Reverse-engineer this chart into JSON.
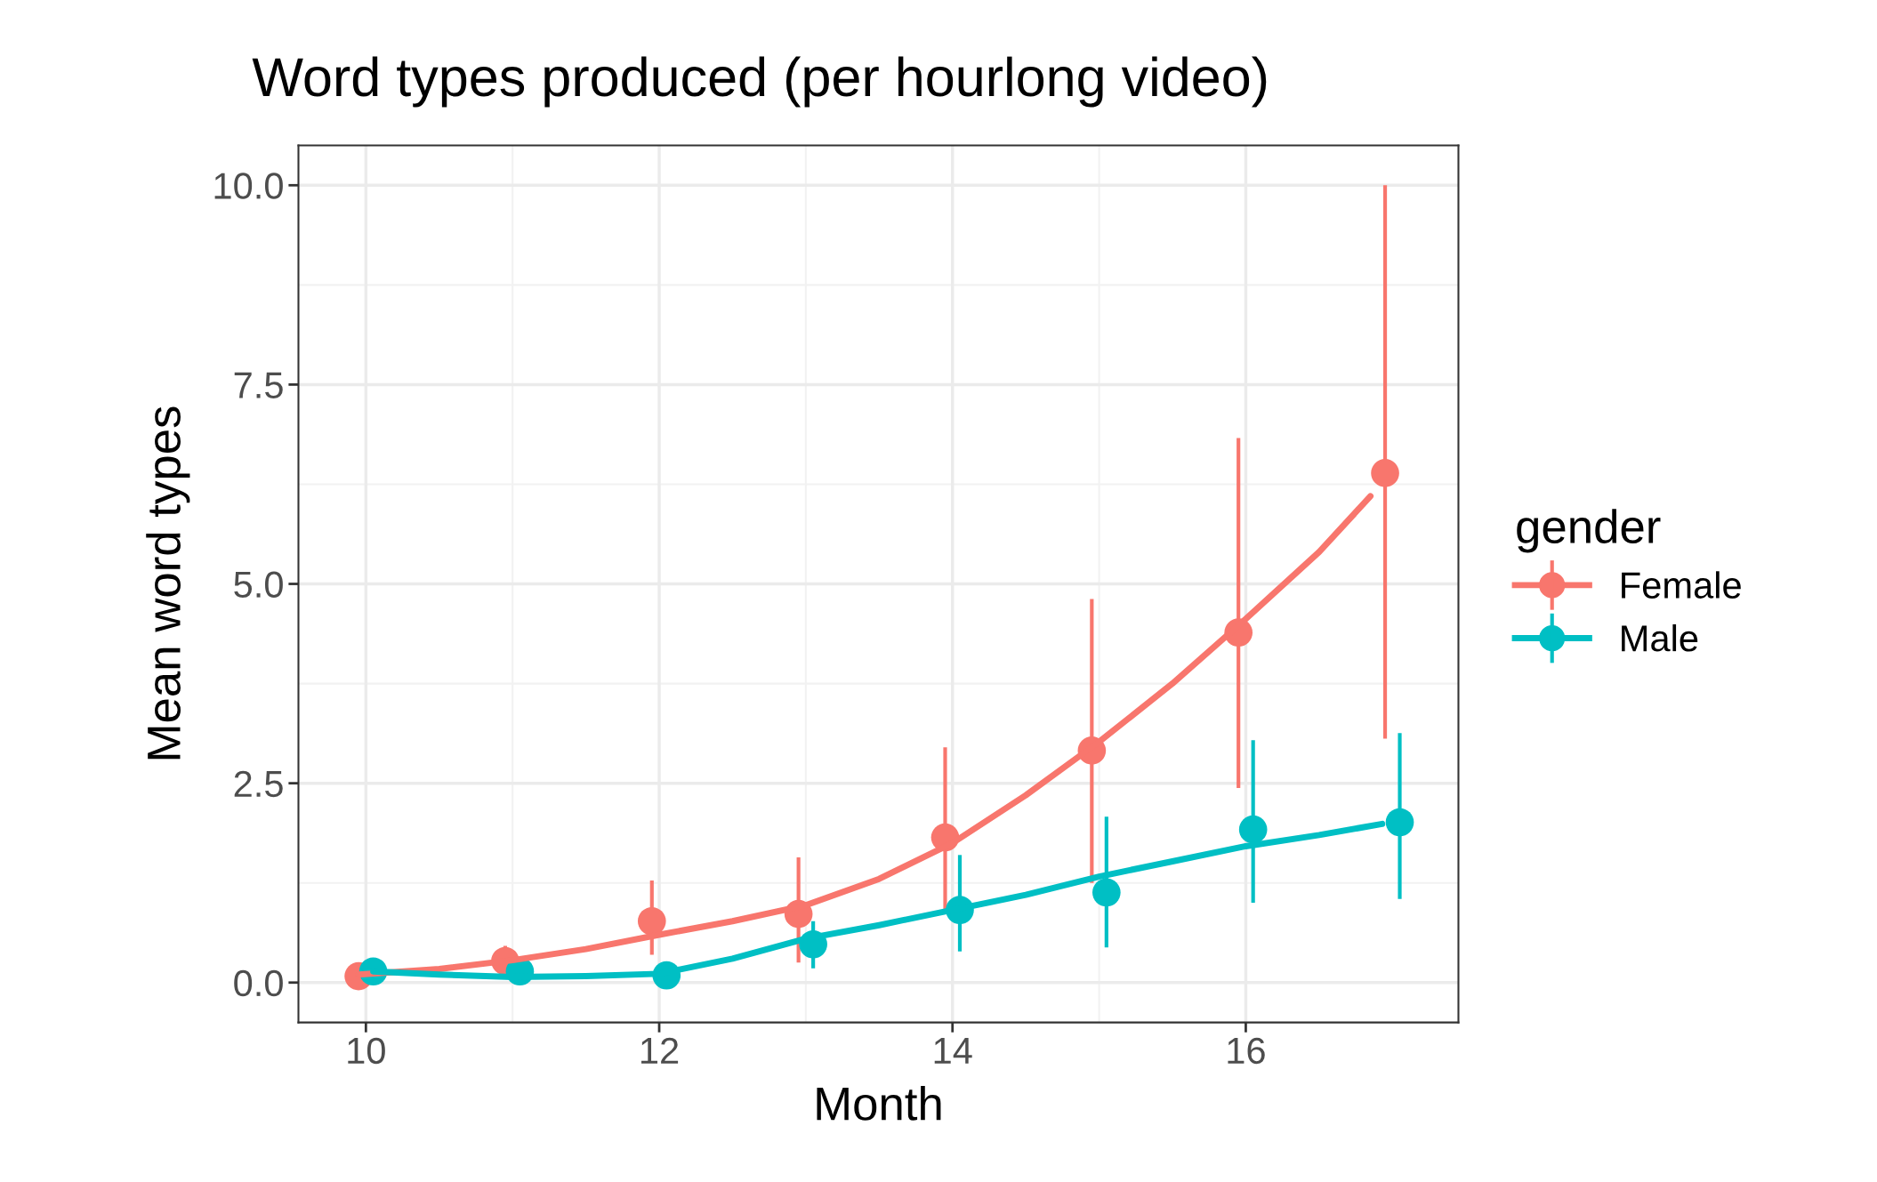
{
  "chart_data": {
    "type": "scatter",
    "title": "Word types produced (per hourlong video)",
    "xlabel": "Month",
    "ylabel": "Mean word types",
    "legend_title": "gender",
    "xlim": [
      9.54,
      17.45
    ],
    "ylim": [
      -0.5,
      10.5
    ],
    "xticks": [
      10,
      12,
      14,
      16
    ],
    "yticks": [
      {
        "value": 0,
        "label": "0.0"
      },
      {
        "value": 2.5,
        "label": "2.5"
      },
      {
        "value": 5,
        "label": "5.0"
      },
      {
        "value": 7.5,
        "label": "7.5"
      },
      {
        "value": 10,
        "label": "10.0"
      }
    ],
    "grid": true,
    "legend": "right",
    "marker": "circle",
    "series": [
      {
        "name": "Female",
        "color": "#f8766d",
        "x": [
          9.95,
          10.95,
          11.95,
          12.95,
          13.95,
          14.95,
          15.95,
          16.95
        ],
        "values": [
          0.08,
          0.27,
          0.77,
          0.86,
          1.82,
          2.91,
          4.39,
          6.39
        ],
        "errors": [
          null,
          [
            0.11,
            0.46
          ],
          [
            0.35,
            1.28
          ],
          [
            0.25,
            1.57
          ],
          [
            0.91,
            2.95
          ],
          [
            1.25,
            4.81
          ],
          [
            2.44,
            6.83
          ],
          [
            3.06,
            10.0
          ]
        ]
      },
      {
        "name": "Male",
        "color": "#00bfc4",
        "x": [
          10.05,
          11.05,
          12.05,
          13.05,
          14.05,
          15.05,
          16.05,
          17.05
        ],
        "values": [
          0.14,
          0.14,
          0.09,
          0.48,
          0.91,
          1.13,
          1.92,
          2.01
        ],
        "errors": [
          [
            0.14,
            0.3
          ],
          null,
          null,
          [
            0.18,
            0.77
          ],
          [
            0.39,
            1.6
          ],
          [
            0.44,
            2.08
          ],
          [
            1.0,
            3.04
          ],
          [
            1.05,
            3.13
          ]
        ]
      },
      {
        "type": "line",
        "marker": "none",
        "color": "#f8766d",
        "x": [
          9.95,
          10.5,
          11,
          11.5,
          12,
          12.5,
          13,
          13.5,
          14,
          14.5,
          15,
          15.5,
          16,
          16.5,
          16.85
        ],
        "values": [
          0.1,
          0.17,
          0.28,
          0.42,
          0.6,
          0.77,
          0.97,
          1.3,
          1.75,
          2.35,
          3.02,
          3.75,
          4.56,
          5.4,
          6.1
        ]
      },
      {
        "type": "line",
        "marker": "none",
        "color": "#00bfc4",
        "x": [
          10.05,
          10.5,
          11,
          11.5,
          12,
          12.5,
          13,
          13.5,
          14,
          14.5,
          15,
          15.5,
          16,
          16.5,
          16.93
        ],
        "values": [
          0.14,
          0.1,
          0.07,
          0.08,
          0.11,
          0.3,
          0.55,
          0.72,
          0.91,
          1.1,
          1.33,
          1.52,
          1.71,
          1.85,
          1.99
        ]
      }
    ]
  }
}
